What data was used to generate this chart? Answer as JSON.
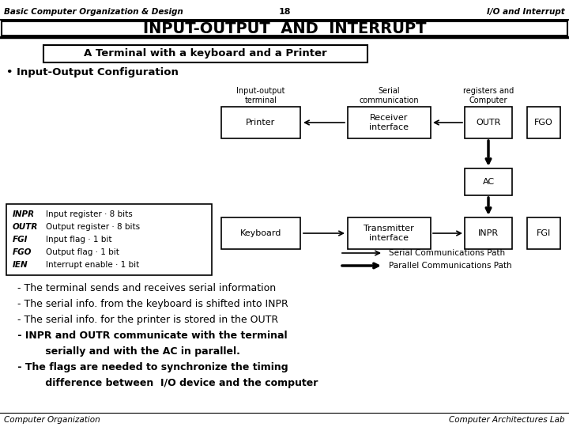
{
  "header_left": "Basic Computer Organization & Design",
  "header_center": "18",
  "header_right": "I/O and Interrupt",
  "title": "INPUT-OUTPUT  AND  INTERRUPT",
  "subtitle": "A Terminal with a keyboard and a Printer",
  "bullet": "• Input-Output Configuration",
  "legend_lines": [
    [
      "INPR",
      "Input register · 8 bits"
    ],
    [
      "OUTR",
      "Output register · 8 bits"
    ],
    [
      "FGI",
      "Input flag · 1 bit"
    ],
    [
      "FGO",
      "Output flag · 1 bit"
    ],
    [
      "IEN",
      "Interrupt enable · 1 bit"
    ]
  ],
  "bullet_points": [
    [
      " - The terminal sends and receives serial information",
      false
    ],
    [
      " - The serial info. from the keyboard is shifted into INPR",
      false
    ],
    [
      " - The serial info. for the printer is stored in the OUTR",
      false
    ],
    [
      " - INPR and OUTR communicate with the terminal",
      true
    ],
    [
      "         serially and with the AC in parallel.",
      true
    ],
    [
      " - The flags are needed to synchronize the timing",
      true
    ],
    [
      "         difference between  I/O device and the computer",
      true
    ]
  ],
  "footer_left": "Computer Organization",
  "footer_right": "Computer Architectures Lab"
}
